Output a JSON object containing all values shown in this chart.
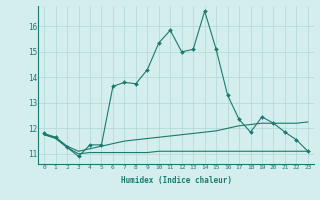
{
  "xlabel": "Humidex (Indice chaleur)",
  "bg_color": "#d4eeee",
  "line_color": "#1a7a6e",
  "grid_color": "#b0d8d8",
  "xlim": [
    -0.5,
    23.5
  ],
  "ylim": [
    10.6,
    16.8
  ],
  "xticks": [
    0,
    1,
    2,
    3,
    4,
    5,
    6,
    7,
    8,
    9,
    10,
    11,
    12,
    13,
    14,
    15,
    16,
    17,
    18,
    19,
    20,
    21,
    22,
    23
  ],
  "yticks": [
    11,
    12,
    13,
    14,
    15,
    16
  ],
  "main_x": [
    0,
    1,
    2,
    3,
    4,
    5,
    6,
    7,
    8,
    9,
    10,
    11,
    12,
    13,
    14,
    15,
    16,
    17,
    18,
    19,
    20,
    21,
    22,
    23
  ],
  "main_y": [
    11.8,
    11.65,
    11.25,
    10.9,
    11.35,
    11.35,
    13.65,
    13.8,
    13.75,
    14.3,
    15.35,
    15.85,
    15.0,
    15.1,
    16.6,
    15.1,
    13.3,
    12.35,
    11.85,
    12.45,
    12.2,
    11.85,
    11.55,
    11.1
  ],
  "line2_x": [
    0,
    1,
    2,
    3,
    4,
    5,
    6,
    7,
    8,
    9,
    10,
    11,
    12,
    13,
    14,
    15,
    16,
    17,
    18,
    19,
    20,
    21,
    22,
    23
  ],
  "line2_y": [
    11.75,
    11.65,
    11.3,
    11.1,
    11.2,
    11.3,
    11.4,
    11.5,
    11.55,
    11.6,
    11.65,
    11.7,
    11.75,
    11.8,
    11.85,
    11.9,
    12.0,
    12.1,
    12.15,
    12.2,
    12.2,
    12.2,
    12.2,
    12.25
  ],
  "line3_x": [
    0,
    1,
    2,
    3,
    4,
    5,
    6,
    7,
    8,
    9,
    10,
    11,
    12,
    13,
    14,
    15,
    16,
    17,
    18,
    19,
    20,
    21,
    22,
    23
  ],
  "line3_y": [
    11.75,
    11.6,
    11.25,
    11.0,
    11.05,
    11.05,
    11.05,
    11.05,
    11.05,
    11.05,
    11.1,
    11.1,
    11.1,
    11.1,
    11.1,
    11.1,
    11.1,
    11.1,
    11.1,
    11.1,
    11.1,
    11.1,
    11.1,
    11.1
  ]
}
